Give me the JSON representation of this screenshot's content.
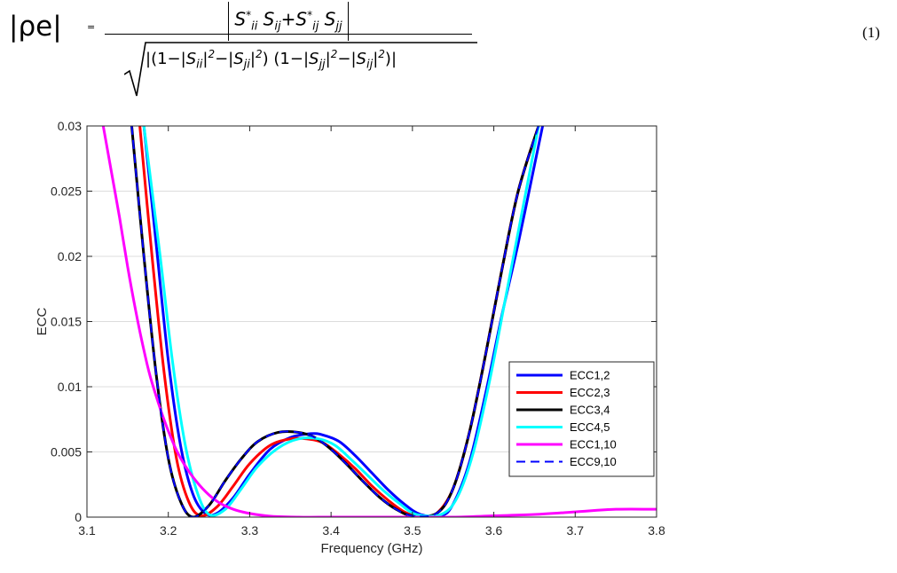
{
  "equation": {
    "lhs": "|ρe|",
    "equals": "=",
    "number": "(1)"
  },
  "chart_data": {
    "type": "line",
    "title": "",
    "xlabel": "Frequency (GHz)",
    "ylabel": "ECC",
    "xlim": [
      3.1,
      3.8
    ],
    "ylim": [
      0,
      0.03
    ],
    "xticks": [
      3.1,
      3.2,
      3.3,
      3.4,
      3.5,
      3.6,
      3.7,
      3.8
    ],
    "yticks": [
      0,
      0.005,
      0.01,
      0.015,
      0.02,
      0.025,
      0.03
    ],
    "ytick_labels": [
      "0",
      "0.005",
      "0.01",
      "0.015",
      "0.02",
      "0.025",
      "0.03"
    ],
    "grid": "horizontal",
    "legend_position": "bottom-right",
    "series": [
      {
        "name": "ECC1,2",
        "color": "#0000ff",
        "style": "solid",
        "x": [
          3.17,
          3.185,
          3.2,
          3.215,
          3.23,
          3.245,
          3.26,
          3.28,
          3.3,
          3.325,
          3.35,
          3.375,
          3.39,
          3.41,
          3.43,
          3.45,
          3.47,
          3.49,
          3.51,
          3.535,
          3.55,
          3.57,
          3.59,
          3.61,
          3.63,
          3.65,
          3.66
        ],
        "y": [
          0.03,
          0.021,
          0.012,
          0.0055,
          0.0018,
          0.0003,
          0.0003,
          0.0015,
          0.0033,
          0.0052,
          0.0061,
          0.0064,
          0.0063,
          0.0058,
          0.0047,
          0.0034,
          0.0021,
          0.001,
          0.0002,
          0.0001,
          0.001,
          0.0042,
          0.0095,
          0.0155,
          0.021,
          0.027,
          0.03
        ]
      },
      {
        "name": "ECC2,3",
        "color": "#ff0000",
        "style": "solid",
        "x": [
          3.165,
          3.18,
          3.195,
          3.21,
          3.225,
          3.24,
          3.26,
          3.28,
          3.3,
          3.325,
          3.35,
          3.37,
          3.39,
          3.41,
          3.43,
          3.45,
          3.47,
          3.49,
          3.51,
          3.53,
          3.55,
          3.57,
          3.59,
          3.61,
          3.63,
          3.655
        ],
        "y": [
          0.03,
          0.02,
          0.011,
          0.0045,
          0.0012,
          0.0001,
          0.0008,
          0.0024,
          0.0041,
          0.0055,
          0.006,
          0.006,
          0.0057,
          0.0048,
          0.0037,
          0.0024,
          0.0013,
          0.0004,
          0.0,
          0.0003,
          0.0022,
          0.0065,
          0.0125,
          0.019,
          0.025,
          0.03
        ]
      },
      {
        "name": "ECC3,4",
        "color": "#000000",
        "style": "solid",
        "x": [
          3.155,
          3.17,
          3.185,
          3.2,
          3.215,
          3.23,
          3.25,
          3.27,
          3.29,
          3.31,
          3.335,
          3.36,
          3.38,
          3.4,
          3.42,
          3.44,
          3.46,
          3.48,
          3.5,
          3.53,
          3.55,
          3.57,
          3.59,
          3.61,
          3.63,
          3.655
        ],
        "y": [
          0.03,
          0.02,
          0.011,
          0.0045,
          0.0012,
          0.0,
          0.0009,
          0.0028,
          0.0045,
          0.0058,
          0.0065,
          0.0065,
          0.0061,
          0.0052,
          0.004,
          0.0027,
          0.0015,
          0.0006,
          0.0001,
          0.0003,
          0.0022,
          0.0065,
          0.0125,
          0.019,
          0.025,
          0.03
        ]
      },
      {
        "name": "ECC4,5",
        "color": "#00ffff",
        "style": "solid",
        "x": [
          3.17,
          3.19,
          3.205,
          3.22,
          3.235,
          3.25,
          3.27,
          3.29,
          3.31,
          3.335,
          3.36,
          3.385,
          3.405,
          3.425,
          3.445,
          3.465,
          3.485,
          3.505,
          3.535,
          3.555,
          3.575,
          3.595,
          3.615,
          3.635,
          3.655
        ],
        "y": [
          0.03,
          0.02,
          0.012,
          0.0058,
          0.002,
          0.0002,
          0.0006,
          0.0022,
          0.0039,
          0.0053,
          0.006,
          0.006,
          0.0055,
          0.0044,
          0.0032,
          0.002,
          0.001,
          0.0002,
          0.0002,
          0.0015,
          0.005,
          0.0105,
          0.017,
          0.0235,
          0.03
        ]
      },
      {
        "name": "ECC1,10",
        "color": "#ff00ff",
        "style": "solid",
        "x": [
          3.12,
          3.13,
          3.14,
          3.15,
          3.16,
          3.17,
          3.18,
          3.2,
          3.22,
          3.25,
          3.28,
          3.32,
          3.36,
          3.4,
          3.45,
          3.5,
          3.55,
          3.6,
          3.65,
          3.7,
          3.75,
          3.8
        ],
        "y": [
          0.03,
          0.0265,
          0.023,
          0.0192,
          0.0158,
          0.0128,
          0.0103,
          0.0066,
          0.004,
          0.0017,
          0.0006,
          0.0001,
          0.0,
          0.0,
          0.0,
          0.0,
          0.0,
          0.0001,
          0.0002,
          0.0004,
          0.0006,
          0.0006
        ]
      },
      {
        "name": "ECC9,10",
        "color": "#0000ff",
        "style": "dashed",
        "x": [
          3.155,
          3.17,
          3.185,
          3.2,
          3.215,
          3.23,
          3.25,
          3.27,
          3.29,
          3.31,
          3.335,
          3.36,
          3.38,
          3.4,
          3.42,
          3.44,
          3.46,
          3.48,
          3.5,
          3.53,
          3.55,
          3.57,
          3.59,
          3.61,
          3.63,
          3.655
        ],
        "y": [
          0.03,
          0.02,
          0.011,
          0.0045,
          0.0012,
          0.0,
          0.0009,
          0.0028,
          0.0045,
          0.0058,
          0.0065,
          0.0065,
          0.0061,
          0.0052,
          0.004,
          0.0027,
          0.0015,
          0.0006,
          0.0001,
          0.0003,
          0.0022,
          0.0065,
          0.0125,
          0.019,
          0.025,
          0.03
        ]
      }
    ]
  }
}
